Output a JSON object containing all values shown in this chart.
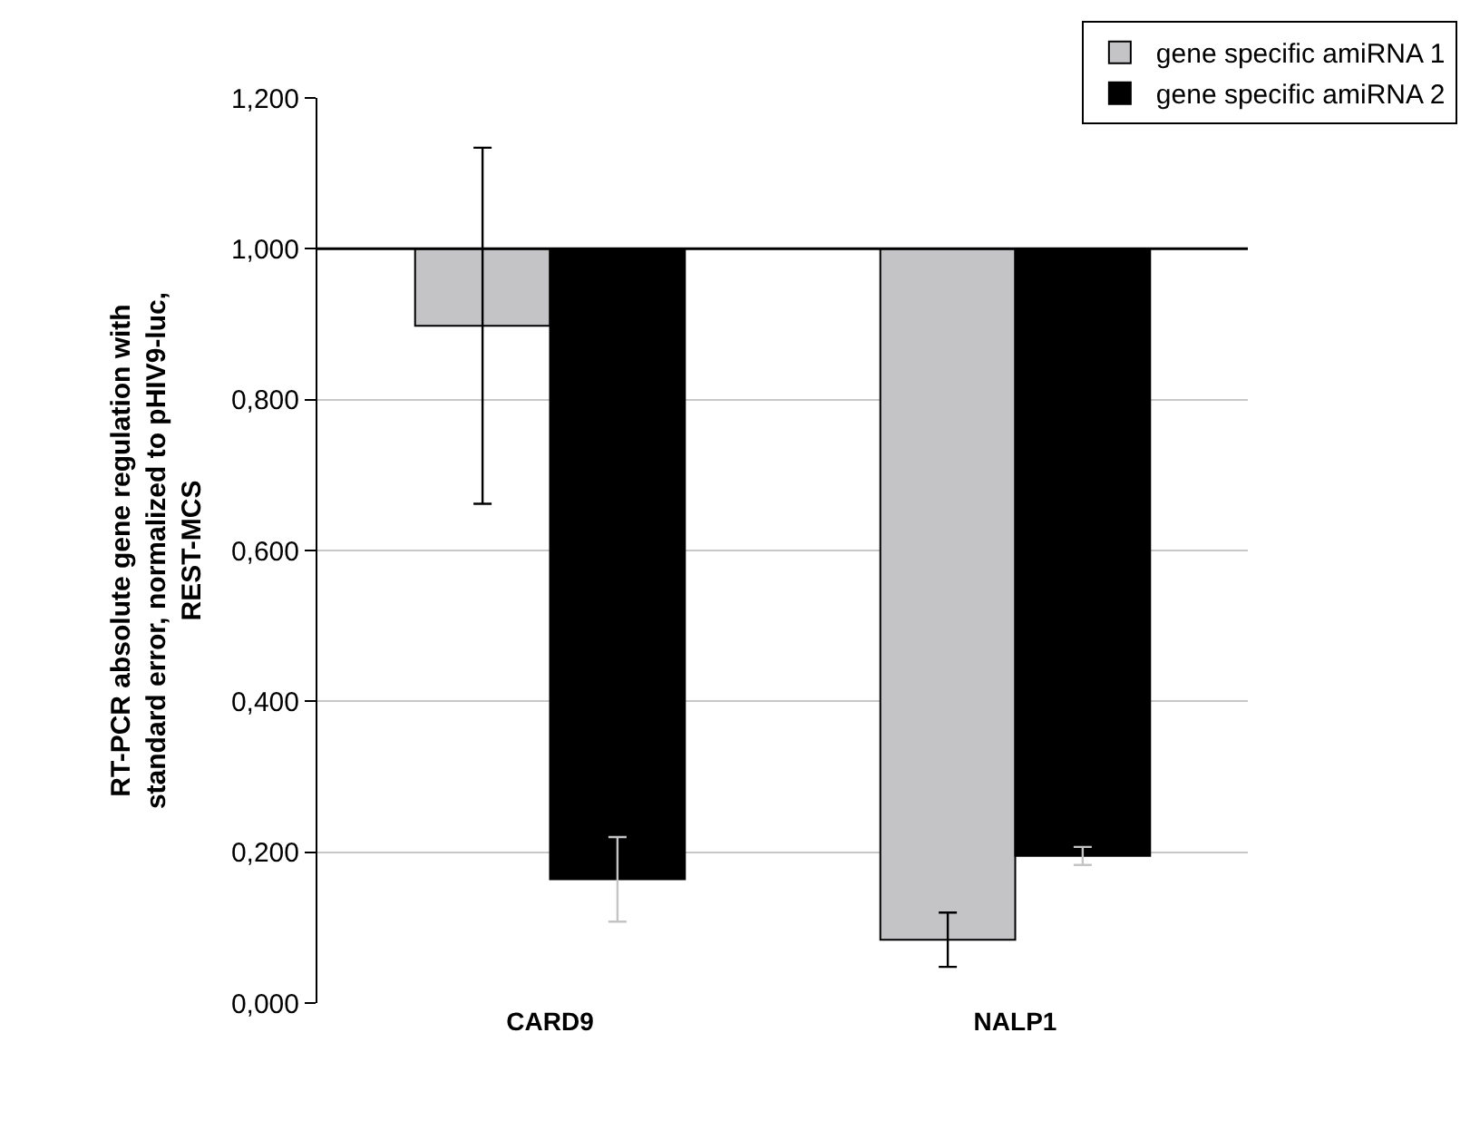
{
  "chart_data": {
    "type": "bar",
    "ylabel": "RT-PCR absolute gene regulation with\nstandard error, normalized to pHIV9-luc,\nREST-MCS",
    "categories": [
      "CARD9",
      "NALP1"
    ],
    "series": [
      {
        "name": "gene specific amiRNA 1",
        "color": "#c4c3c6",
        "base": [
          1.0,
          1.0
        ],
        "values": [
          -0.102,
          -0.916
        ],
        "errors": [
          0.236,
          0.036
        ]
      },
      {
        "name": "gene specific amiRNA 2",
        "color": "#000000",
        "base": [
          1.0,
          1.0
        ],
        "values": [
          -0.836,
          -0.805
        ],
        "errors": [
          0.056,
          0.012
        ]
      }
    ],
    "ylim": [
      0,
      1.2
    ],
    "yticks": [
      {
        "value": 0,
        "label": "0,000"
      },
      {
        "value": 0.2,
        "label": "0,200"
      },
      {
        "value": 0.4,
        "label": "0,400"
      },
      {
        "value": 0.6,
        "label": "0,600"
      },
      {
        "value": 0.8,
        "label": "0,800"
      },
      {
        "value": 1.0,
        "label": "1,000"
      },
      {
        "value": 1.2,
        "label": "1,200"
      }
    ],
    "ref_lines": [
      {
        "axis": "y",
        "value": 1.0,
        "color": "#000000"
      }
    ],
    "grid": "y",
    "legend": "top right"
  }
}
